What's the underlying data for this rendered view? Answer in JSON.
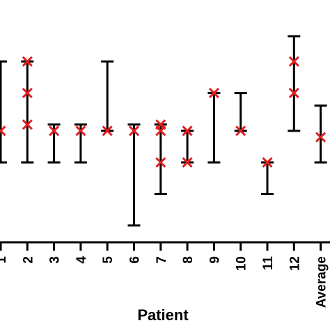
{
  "chart_data": {
    "type": "scatter",
    "title": "",
    "xlabel": "Patient",
    "ylabel": "",
    "categories": [
      "1",
      "2",
      "3",
      "4",
      "5",
      "6",
      "7",
      "8",
      "9",
      "10",
      "11",
      "12",
      "Average"
    ],
    "ylim": [
      0,
      1
    ],
    "grid": false,
    "legend": "none",
    "ranges": [
      {
        "low": 0.58,
        "high": 0.9
      },
      {
        "low": 0.58,
        "high": 0.9
      },
      {
        "low": 0.58,
        "high": 0.7
      },
      {
        "low": 0.58,
        "high": 0.7
      },
      {
        "low": 0.68,
        "high": 0.9
      },
      {
        "low": 0.38,
        "high": 0.7
      },
      {
        "low": 0.48,
        "high": 0.7
      },
      {
        "low": 0.58,
        "high": 0.68
      },
      {
        "low": 0.58,
        "high": 0.8
      },
      {
        "low": 0.68,
        "high": 0.8
      },
      {
        "low": 0.48,
        "high": 0.58
      },
      {
        "low": 0.68,
        "high": 0.98
      },
      {
        "low": 0.58,
        "high": 0.76
      }
    ],
    "points": [
      [
        0.68
      ],
      [
        0.9,
        0.8,
        0.7
      ],
      [
        0.68
      ],
      [
        0.68
      ],
      [
        0.68
      ],
      [
        0.68
      ],
      [
        0.7,
        0.68,
        0.58
      ],
      [
        0.68,
        0.58
      ],
      [
        0.8
      ],
      [
        0.68
      ],
      [
        0.58
      ],
      [
        0.9,
        0.8
      ],
      [
        0.66
      ]
    ],
    "colors": {
      "marker": "#e02020",
      "errorbar": "#000000",
      "axis": "#000000"
    }
  }
}
